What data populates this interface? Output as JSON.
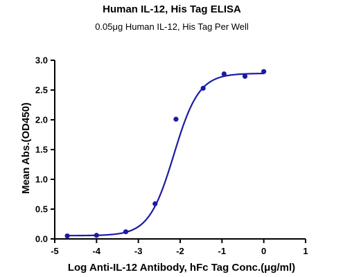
{
  "chart_data": {
    "type": "scatter",
    "title": "Human IL-12, His Tag ELISA",
    "subtitle": "0.05μg Human IL-12, His Tag Per Well",
    "xlabel": "Log Anti-IL-12 Antibody, hFc Tag Conc.(μg/ml)",
    "ylabel": "Mean Abs.(OD450)",
    "xlim": [
      -5,
      1
    ],
    "ylim": [
      0,
      3.0
    ],
    "x_ticks": [
      "-5",
      "-4",
      "-3",
      "-2",
      "-1",
      "0",
      "1"
    ],
    "y_ticks": [
      "0.0",
      "0.5",
      "1.0",
      "1.5",
      "2.0",
      "2.5",
      "3.0"
    ],
    "grid": false,
    "series": [
      {
        "points": [
          {
            "x": -4.7,
            "y": 0.05
          },
          {
            "x": -4.0,
            "y": 0.06
          },
          {
            "x": -3.3,
            "y": 0.12
          },
          {
            "x": -2.6,
            "y": 0.59
          },
          {
            "x": -2.1,
            "y": 2.01
          },
          {
            "x": -1.45,
            "y": 2.53
          },
          {
            "x": -0.95,
            "y": 2.77
          },
          {
            "x": -0.45,
            "y": 2.73
          },
          {
            "x": 0.0,
            "y": 2.81
          }
        ],
        "fit": {
          "model": "4PL",
          "bottom": 0.055,
          "top": 2.78,
          "log_ec50": -2.15,
          "hill_slope": 1.45
        }
      }
    ],
    "color": "#1a1aa6"
  }
}
